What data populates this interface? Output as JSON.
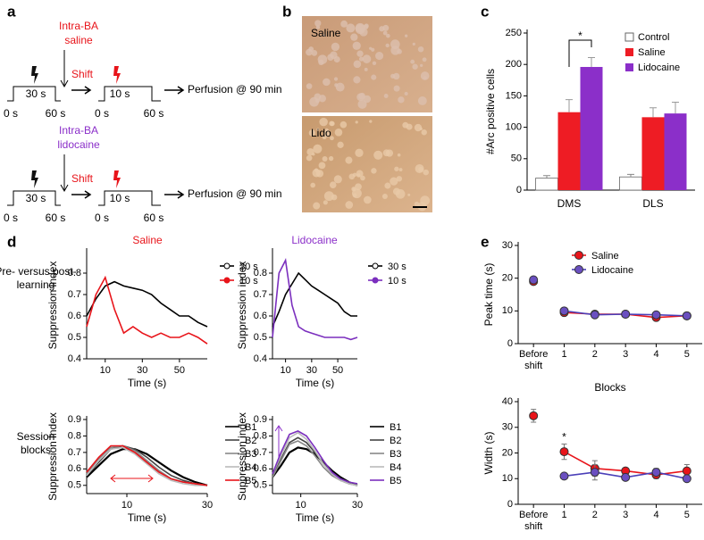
{
  "panel_labels": [
    "a",
    "b",
    "c",
    "d",
    "e"
  ],
  "diagram": {
    "rows": [
      {
        "drug": [
          "Intra-BA",
          "saline"
        ],
        "drug_color": "#e8141a",
        "shift": "Shift",
        "first_duration": "30 s",
        "second_duration": "10 s",
        "times": [
          "0 s",
          "60 s",
          "0 s",
          "60 s"
        ],
        "outcome": "Perfusion @ 90 min"
      },
      {
        "drug": [
          "Intra-BA",
          "lidocaine"
        ],
        "drug_color": "#8b2fc9",
        "shift": "Shift",
        "first_duration": "30 s",
        "second_duration": "10 s",
        "times": [
          "0 s",
          "60 s",
          "0 s",
          "60 s"
        ],
        "outcome": "Perfusion @ 90 min"
      }
    ]
  },
  "images": [
    {
      "label": "Saline"
    },
    {
      "label": "Lido"
    }
  ],
  "chart_data": [
    {
      "type": "bar",
      "ylabel": "#Arc positive cells",
      "categories": [
        "DMS",
        "DLS"
      ],
      "series": [
        {
          "name": "Control",
          "color": "#ffffff",
          "values": [
            19,
            21
          ],
          "errors": [
            4,
            4
          ]
        },
        {
          "name": "Saline",
          "color": "#ee1c24",
          "values": [
            124,
            116
          ],
          "errors": [
            20,
            15
          ]
        },
        {
          "name": "Lidocaine",
          "color": "#8b2fc9",
          "values": [
            196,
            122
          ],
          "errors": [
            15,
            18
          ]
        }
      ],
      "ylim": [
        0,
        250
      ],
      "yticks": [
        0,
        50,
        100,
        150,
        200,
        250
      ],
      "annotation": "*",
      "legend": "top-right"
    },
    {
      "type": "line",
      "title": "Saline",
      "title_color": "#e8141a",
      "row_label": [
        "Pre- versus post-",
        "learning"
      ],
      "ylabel": "Suppression index",
      "xlabel": "Time (s)",
      "x": [
        0,
        5,
        10,
        15,
        20,
        25,
        30,
        35,
        40,
        45,
        50,
        55,
        60,
        65
      ],
      "xlim": [
        0,
        65
      ],
      "xticks": [
        10,
        30,
        50
      ],
      "ylim": [
        0.4,
        0.9
      ],
      "yticks": [
        0.4,
        0.5,
        0.6,
        0.7,
        0.8
      ],
      "series": [
        {
          "name": "30 s",
          "color": "#000000",
          "marker": "open",
          "values": [
            0.6,
            0.68,
            0.74,
            0.76,
            0.74,
            0.73,
            0.72,
            0.7,
            0.66,
            0.63,
            0.6,
            0.6,
            0.57,
            0.55
          ]
        },
        {
          "name": "10 s",
          "color": "#e8141a",
          "marker": "filled",
          "values": [
            0.55,
            0.7,
            0.78,
            0.63,
            0.52,
            0.55,
            0.52,
            0.5,
            0.52,
            0.5,
            0.5,
            0.52,
            0.5,
            0.47
          ]
        }
      ]
    },
    {
      "type": "line",
      "title": "Lidocaine",
      "title_color": "#8b2fc9",
      "ylabel": "Suppression index",
      "xlabel": "Time (s)",
      "x": [
        0,
        5,
        10,
        15,
        20,
        25,
        30,
        35,
        40,
        45,
        50,
        55,
        60,
        65
      ],
      "xlim": [
        0,
        65
      ],
      "xticks": [
        10,
        30,
        50
      ],
      "ylim": [
        0.4,
        0.9
      ],
      "yticks": [
        0.4,
        0.5,
        0.6,
        0.7,
        0.8
      ],
      "series": [
        {
          "name": "30 s",
          "color": "#000000",
          "marker": "open",
          "values": [
            0.55,
            0.62,
            0.7,
            0.75,
            0.8,
            0.77,
            0.74,
            0.72,
            0.7,
            0.68,
            0.66,
            0.62,
            0.6,
            0.6
          ]
        },
        {
          "name": "10 s",
          "color": "#7b2fbe",
          "marker": "filled",
          "values": [
            0.5,
            0.8,
            0.86,
            0.65,
            0.55,
            0.53,
            0.52,
            0.51,
            0.5,
            0.5,
            0.5,
            0.5,
            0.49,
            0.5
          ]
        }
      ]
    },
    {
      "type": "line",
      "row_label": [
        "Session",
        "blocks"
      ],
      "ylabel": "Suppression index",
      "xlabel": "Time (s)",
      "x": [
        0,
        3,
        6,
        9,
        12,
        15,
        18,
        21,
        24,
        27,
        30
      ],
      "xlim": [
        0,
        30
      ],
      "xticks": [
        10,
        30
      ],
      "ylim": [
        0.45,
        0.9
      ],
      "yticks": [
        0.5,
        0.6,
        0.7,
        0.8,
        0.9
      ],
      "series": [
        {
          "name": "B1",
          "color": "#000000",
          "values": [
            0.55,
            0.62,
            0.69,
            0.72,
            0.72,
            0.69,
            0.64,
            0.59,
            0.55,
            0.52,
            0.5
          ]
        },
        {
          "name": "B2",
          "color": "#444444",
          "values": [
            0.56,
            0.64,
            0.72,
            0.74,
            0.72,
            0.67,
            0.61,
            0.56,
            0.53,
            0.51,
            0.5
          ]
        },
        {
          "name": "B3",
          "color": "#888888",
          "values": [
            0.57,
            0.66,
            0.73,
            0.74,
            0.71,
            0.65,
            0.59,
            0.54,
            0.52,
            0.51,
            0.5
          ]
        },
        {
          "name": "B4",
          "color": "#bbbbbb",
          "values": [
            0.56,
            0.65,
            0.72,
            0.73,
            0.69,
            0.63,
            0.57,
            0.53,
            0.51,
            0.5,
            0.5
          ]
        },
        {
          "name": "B5",
          "color": "#e8141a",
          "values": [
            0.58,
            0.67,
            0.74,
            0.74,
            0.7,
            0.64,
            0.58,
            0.54,
            0.52,
            0.51,
            0.5
          ]
        }
      ]
    },
    {
      "type": "line",
      "ylabel": "Suppression index",
      "xlabel": "Time (s)",
      "x": [
        0,
        3,
        6,
        9,
        12,
        15,
        18,
        21,
        24,
        27,
        30
      ],
      "xlim": [
        0,
        30
      ],
      "xticks": [
        10,
        30
      ],
      "ylim": [
        0.45,
        0.9
      ],
      "yticks": [
        0.5,
        0.6,
        0.7,
        0.8,
        0.9
      ],
      "series": [
        {
          "name": "B1",
          "color": "#000000",
          "values": [
            0.55,
            0.62,
            0.7,
            0.73,
            0.72,
            0.69,
            0.64,
            0.59,
            0.55,
            0.52,
            0.5
          ]
        },
        {
          "name": "B2",
          "color": "#444444",
          "values": [
            0.56,
            0.66,
            0.76,
            0.79,
            0.76,
            0.7,
            0.63,
            0.57,
            0.53,
            0.51,
            0.5
          ]
        },
        {
          "name": "B3",
          "color": "#888888",
          "values": [
            0.55,
            0.65,
            0.75,
            0.77,
            0.74,
            0.68,
            0.61,
            0.56,
            0.53,
            0.51,
            0.5
          ]
        },
        {
          "name": "B4",
          "color": "#bbbbbb",
          "values": [
            0.57,
            0.68,
            0.79,
            0.82,
            0.78,
            0.71,
            0.63,
            0.57,
            0.53,
            0.51,
            0.5
          ]
        },
        {
          "name": "B5",
          "color": "#7b2fbe",
          "values": [
            0.57,
            0.7,
            0.81,
            0.83,
            0.8,
            0.73,
            0.65,
            0.58,
            0.54,
            0.52,
            0.51
          ]
        }
      ]
    },
    {
      "type": "line",
      "ylabel": "Peak time (s)",
      "xlabel": "Blocks",
      "categories": [
        "Before shift",
        "1",
        "2",
        "3",
        "4",
        "5"
      ],
      "ylim": [
        0,
        30
      ],
      "yticks": [
        0,
        10,
        20,
        30
      ],
      "legend": "top-center",
      "series": [
        {
          "name": "Saline",
          "color": "#e8141a",
          "marker_color": "#e8141a",
          "values": [
            19,
            9.5,
            9,
            9,
            8,
            8.5
          ]
        },
        {
          "name": "Lidocaine",
          "color": "#4a3fb8",
          "marker_color": "#6a4fc0",
          "values": [
            19.5,
            10,
            8.8,
            9,
            8.8,
            8.5
          ]
        }
      ]
    },
    {
      "type": "line",
      "ylabel": "Width (s)",
      "xlabel": "Blocks",
      "categories": [
        "Before shift",
        "1",
        "2",
        "3",
        "4",
        "5"
      ],
      "ylim": [
        0,
        40
      ],
      "yticks": [
        0,
        10,
        20,
        30,
        40
      ],
      "annotation": "*",
      "series": [
        {
          "name": "Saline",
          "color": "#e8141a",
          "marker_color": "#e8141a",
          "values": [
            34.5,
            20.5,
            14,
            13,
            11.5,
            13
          ],
          "errors": [
            2.5,
            3,
            3,
            1,
            1.5,
            2.5
          ]
        },
        {
          "name": "Lidocaine",
          "color": "#4a3fb8",
          "marker_color": "#6a4fc0",
          "values": [
            null,
            11,
            12.5,
            10.5,
            12.5,
            10
          ],
          "errors": [
            null,
            1,
            3,
            1,
            1.5,
            1
          ]
        }
      ]
    }
  ]
}
